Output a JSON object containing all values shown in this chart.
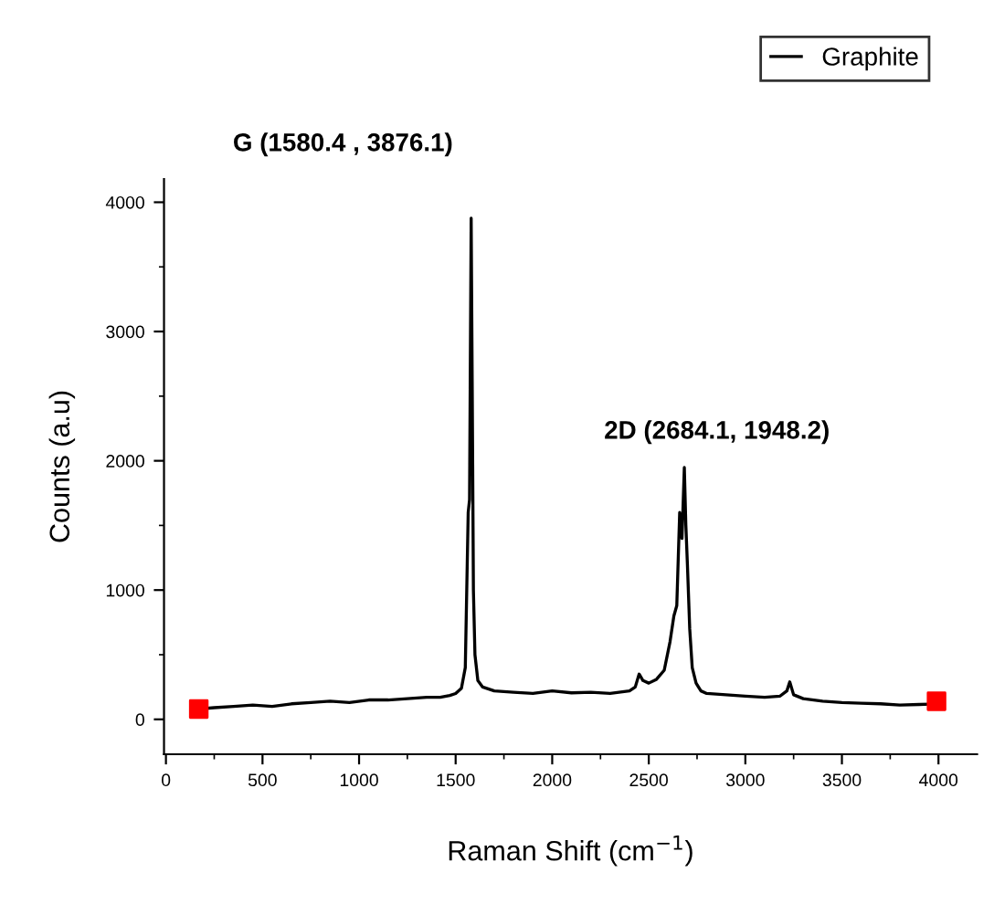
{
  "chart_data": {
    "type": "line",
    "xlabel": "Raman Shift (cm$^{−1}$)",
    "ylabel": "Counts (a.u)",
    "xlim": [
      -10,
      4200
    ],
    "ylim": [
      -270,
      4180
    ],
    "xticks": [
      0,
      500,
      1000,
      1500,
      2000,
      2500,
      3000,
      3500,
      4000
    ],
    "yticks": [
      0,
      1000,
      2000,
      3000,
      4000
    ],
    "legend": "top right",
    "grid": false,
    "marker": "none",
    "line_style": "solid",
    "series": [
      {
        "name": "Graphite",
        "color": "#000000",
        "x": [
          170,
          250,
          350,
          450,
          550,
          650,
          750,
          850,
          950,
          1050,
          1150,
          1250,
          1350,
          1420,
          1470,
          1500,
          1530,
          1550,
          1565,
          1572,
          1580.4,
          1586,
          1592,
          1600,
          1615,
          1640,
          1700,
          1800,
          1900,
          2000,
          2100,
          2200,
          2300,
          2400,
          2430,
          2450,
          2470,
          2500,
          2540,
          2580,
          2610,
          2630,
          2645,
          2660,
          2672,
          2684.1,
          2692,
          2700,
          2712,
          2725,
          2745,
          2770,
          2800,
          2900,
          3000,
          3100,
          3180,
          3215,
          3230,
          3250,
          3300,
          3400,
          3500,
          3600,
          3700,
          3800,
          3900,
          3990
        ],
        "values": [
          80,
          90,
          100,
          110,
          100,
          120,
          130,
          140,
          130,
          150,
          150,
          160,
          170,
          170,
          185,
          200,
          240,
          400,
          1600,
          1700,
          3876.1,
          2550,
          1000,
          500,
          300,
          250,
          220,
          210,
          200,
          220,
          205,
          210,
          200,
          220,
          250,
          350,
          300,
          280,
          310,
          380,
          600,
          800,
          880,
          1600,
          1400,
          1948.2,
          1500,
          1200,
          700,
          400,
          280,
          220,
          200,
          190,
          180,
          170,
          180,
          220,
          290,
          190,
          160,
          140,
          130,
          125,
          120,
          110,
          115,
          120
        ]
      },
      {
        "type": "scatter",
        "marker": "square",
        "color": "#ff0000",
        "x": [
          170,
          3990
        ],
        "values": [
          80,
          140
        ]
      }
    ],
    "annotations": [
      "G (1580.4 , 3876.1)",
      "2D (2684.1, 1948.2)"
    ]
  }
}
